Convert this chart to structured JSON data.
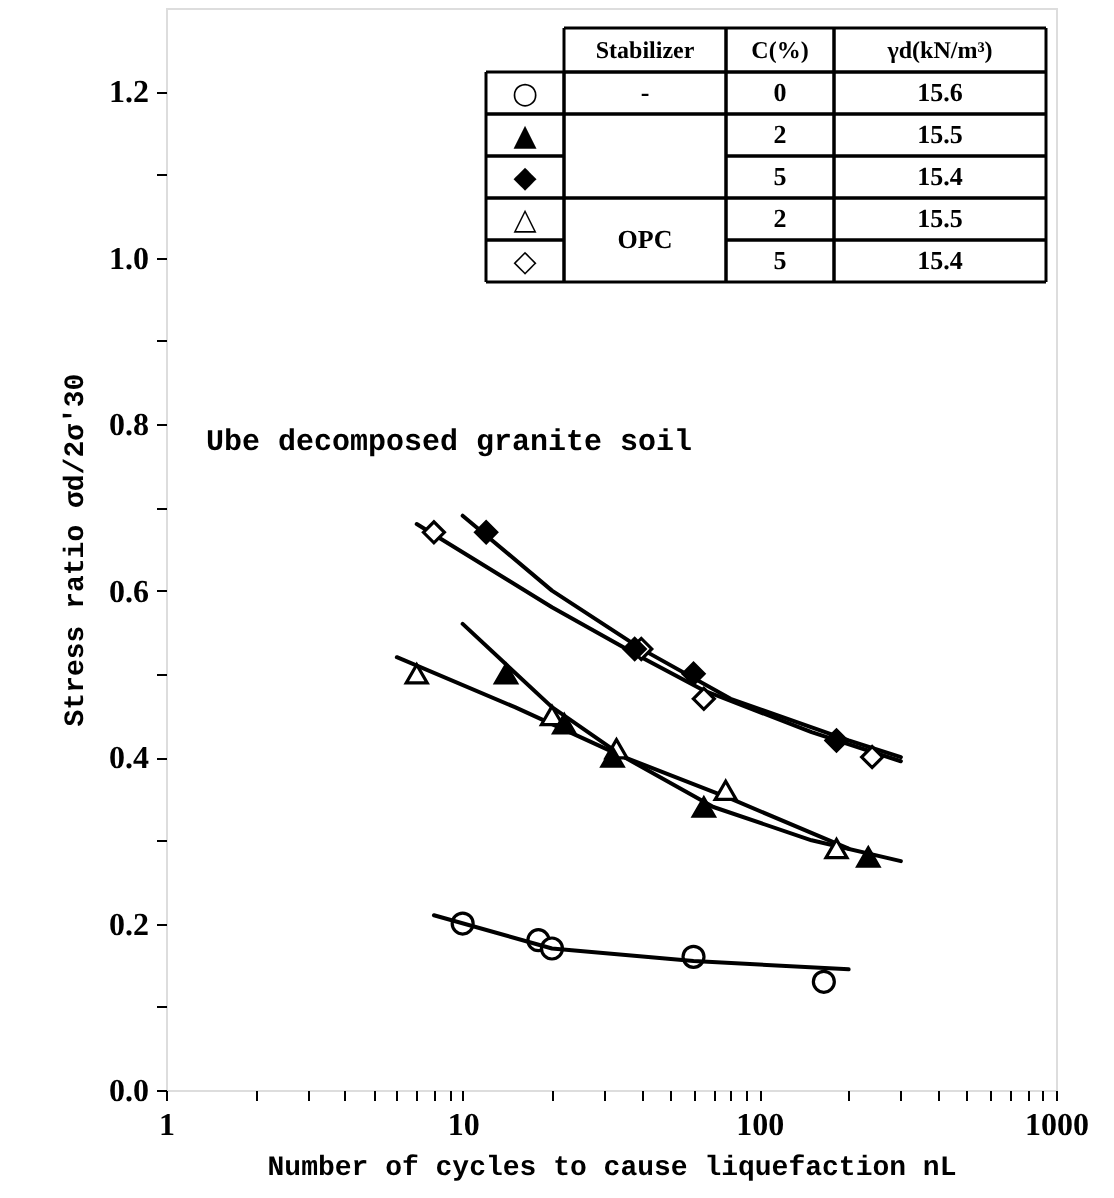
{
  "chart_data": {
    "type": "scatter",
    "xlabel": "Number of cycles to cause liquefaction nL",
    "ylabel": "Stress ratio σd/2σ'30",
    "log": "x",
    "xlim": [
      1,
      1000
    ],
    "ylim": [
      0,
      1.3
    ],
    "xticks": [
      1,
      {
        "value": 2,
        "label": null
      },
      {
        "value": 3,
        "label": null
      },
      {
        "value": 4,
        "label": null
      },
      {
        "value": 5,
        "label": null
      },
      {
        "value": 6,
        "label": null
      },
      {
        "value": 7,
        "label": null
      },
      {
        "value": 8,
        "label": null
      },
      {
        "value": 9,
        "label": null
      },
      10,
      {
        "value": 20,
        "label": null
      },
      {
        "value": 30,
        "label": null
      },
      {
        "value": 40,
        "label": null
      },
      {
        "value": 50,
        "label": null
      },
      {
        "value": 60,
        "label": null
      },
      {
        "value": 70,
        "label": null
      },
      {
        "value": 80,
        "label": null
      },
      {
        "value": 90,
        "label": null
      },
      100,
      {
        "value": 200,
        "label": null
      },
      {
        "value": 300,
        "label": null
      },
      {
        "value": 400,
        "label": null
      },
      {
        "value": 500,
        "label": null
      },
      {
        "value": 600,
        "label": null
      },
      {
        "value": 700,
        "label": null
      },
      {
        "value": 800,
        "label": null
      },
      {
        "value": 900,
        "label": null
      },
      1000
    ],
    "yticks": [
      {
        "value": 0,
        "label": "0.0"
      },
      {
        "value": 0.1,
        "label": null
      },
      0.2,
      {
        "value": 0.3,
        "label": null
      },
      0.4,
      {
        "value": 0.5,
        "label": null
      },
      0.6,
      {
        "value": 0.7,
        "label": null
      },
      0.8,
      {
        "value": 0.9,
        "label": null
      },
      {
        "value": 1,
        "label": "1.0"
      },
      {
        "value": 1.1,
        "label": null
      },
      1.2
    ],
    "grid": false,
    "annotations": [
      "Ube decomposed granite soil",
      "Stabilizer",
      "C(%)",
      "γd(kN/m³)",
      "○",
      "▲",
      "◆",
      "△",
      "◇",
      "-",
      "0",
      "15.6",
      "2",
      "15.5",
      "5",
      "15.4",
      "OPC",
      "2",
      "15.5",
      "5",
      "15.4"
    ],
    "series": [
      {
        "marker": "circle",
        "color": "#ffffff",
        "x": [
          10,
          18,
          20,
          60,
          165
        ],
        "values": [
          0.2,
          0.18,
          0.17,
          0.16,
          0.13
        ]
      },
      {
        "marker": "triangle",
        "color": "#000000",
        "x": [
          14,
          22,
          32,
          65,
          233
        ],
        "values": [
          0.5,
          0.44,
          0.4,
          0.34,
          0.28
        ]
      },
      {
        "marker": "diamond",
        "color": "#000000",
        "x": [
          12,
          38,
          60,
          182
        ],
        "values": [
          0.67,
          0.53,
          0.5,
          0.42
        ]
      },
      {
        "marker": "triangle",
        "color": "#ffffff",
        "x": [
          7,
          20,
          33,
          77,
          182
        ],
        "values": [
          0.5,
          0.45,
          0.41,
          0.36,
          0.29
        ]
      },
      {
        "marker": "diamond",
        "color": "#ffffff",
        "x": [
          8,
          40,
          65,
          240
        ],
        "values": [
          0.67,
          0.53,
          0.47,
          0.4
        ]
      },
      {
        "type": "line",
        "marker": "none",
        "line_style": "solid",
        "color": "#000000",
        "x": [
          8,
          20,
          60,
          200
        ],
        "values": [
          0.21,
          0.17,
          0.155,
          0.145
        ]
      },
      {
        "type": "line",
        "marker": "none",
        "line_style": "solid",
        "color": "#000000",
        "x": [
          10,
          20,
          35,
          70,
          150,
          300
        ],
        "values": [
          0.56,
          0.46,
          0.4,
          0.34,
          0.3,
          0.275
        ]
      },
      {
        "type": "line",
        "marker": "none",
        "line_style": "solid",
        "color": "#000000",
        "x": [
          6,
          15,
          35,
          80,
          200
        ],
        "values": [
          0.52,
          0.46,
          0.4,
          0.35,
          0.29
        ]
      },
      {
        "type": "line",
        "marker": "none",
        "line_style": "solid",
        "color": "#000000",
        "x": [
          10,
          20,
          40,
          80,
          200,
          300
        ],
        "values": [
          0.69,
          0.6,
          0.53,
          0.47,
          0.42,
          0.4
        ]
      },
      {
        "type": "line",
        "marker": "none",
        "line_style": "solid",
        "color": "#000000",
        "x": [
          7,
          20,
          40,
          65,
          150,
          300
        ],
        "values": [
          0.68,
          0.58,
          0.52,
          0.48,
          0.43,
          0.395
        ]
      }
    ]
  }
}
